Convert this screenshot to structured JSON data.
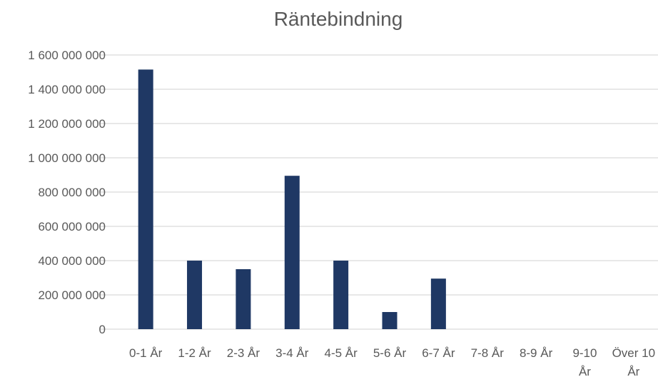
{
  "chart_data": {
    "type": "bar",
    "title": "Räntebindning",
    "xlabel": "",
    "ylabel": "",
    "categories": [
      "0-1 År",
      "1-2 År",
      "2-3 År",
      "3-4 År",
      "4-5 År",
      "5-6 År",
      "6-7 År",
      "7-8 År",
      "8-9 År",
      "9-10 År",
      "Över 10 År"
    ],
    "values": [
      1515000000,
      400000000,
      350000000,
      895000000,
      400000000,
      100000000,
      295000000,
      0,
      0,
      0,
      0
    ],
    "ylim": [
      0,
      1600000000
    ],
    "yticks": [
      0,
      200000000,
      400000000,
      600000000,
      800000000,
      1000000000,
      1200000000,
      1400000000,
      1600000000
    ],
    "ytick_labels": [
      "0",
      "200 000 000",
      "400 000 000",
      "600 000 000",
      "800 000 000",
      "1 000 000 000",
      "1 200 000 000",
      "1 400 000 000",
      "1 600 000 000"
    ],
    "grid": true,
    "legend": "none",
    "bar_color": "#1f3864"
  }
}
